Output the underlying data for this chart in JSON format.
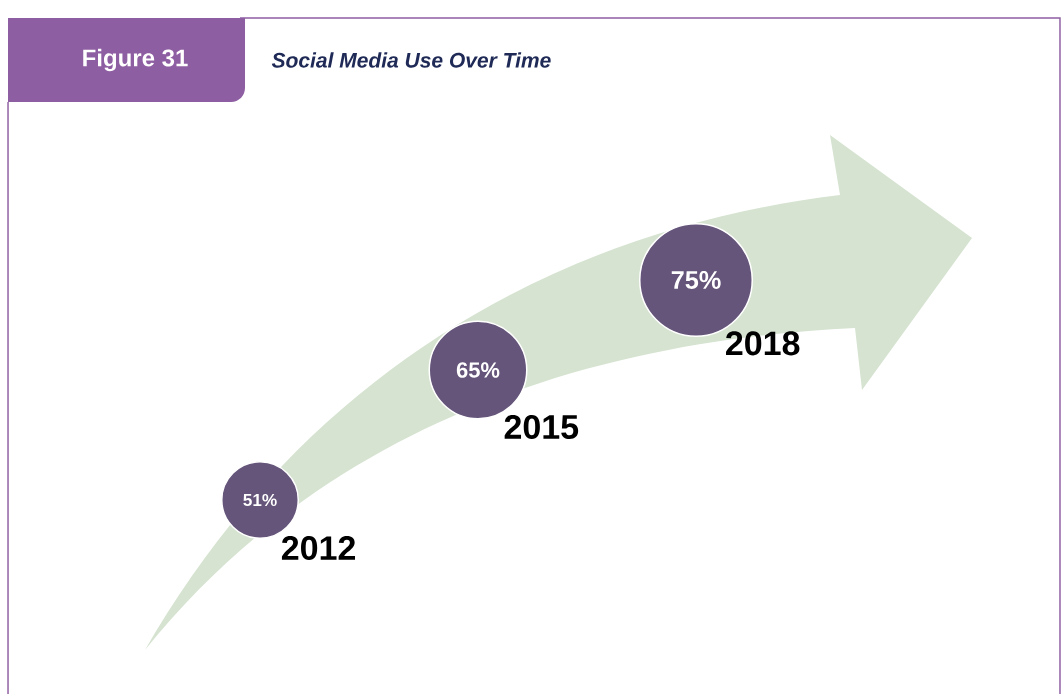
{
  "chart_data": {
    "type": "other",
    "title": "Figure 31",
    "subtitle": "Social Media Use Over Time",
    "categories": [
      "2012",
      "2015",
      "2018"
    ],
    "values": [
      51,
      65,
      75
    ],
    "value_labels": [
      "51%",
      "65%",
      "75%"
    ],
    "color": "#65557a"
  }
}
